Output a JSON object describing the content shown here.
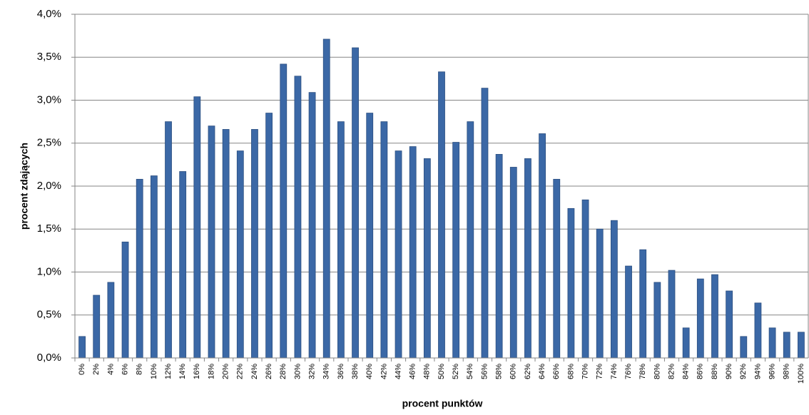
{
  "chart_data": {
    "type": "bar",
    "x_label": "procent punktów",
    "y_label": "procent  zdających",
    "categories": [
      "0%",
      "2%",
      "4%",
      "6%",
      "8%",
      "10%",
      "12%",
      "14%",
      "16%",
      "18%",
      "20%",
      "22%",
      "24%",
      "26%",
      "28%",
      "30%",
      "32%",
      "34%",
      "36%",
      "38%",
      "40%",
      "42%",
      "44%",
      "46%",
      "48%",
      "50%",
      "52%",
      "54%",
      "56%",
      "58%",
      "60%",
      "62%",
      "64%",
      "66%",
      "68%",
      "70%",
      "72%",
      "74%",
      "76%",
      "78%",
      "80%",
      "82%",
      "84%",
      "86%",
      "88%",
      "90%",
      "92%",
      "94%",
      "96%",
      "98%",
      "100%"
    ],
    "values": [
      0.25,
      0.73,
      0.88,
      1.35,
      2.08,
      2.12,
      2.75,
      2.17,
      3.04,
      2.7,
      2.66,
      2.41,
      2.66,
      2.85,
      3.42,
      3.28,
      3.09,
      3.71,
      2.75,
      3.61,
      2.85,
      2.75,
      2.41,
      2.46,
      2.32,
      3.33,
      2.51,
      2.75,
      3.14,
      2.37,
      2.22,
      2.32,
      2.61,
      2.08,
      1.74,
      1.84,
      1.5,
      1.6,
      1.07,
      1.26,
      0.88,
      1.02,
      0.35,
      0.92,
      0.97,
      0.78,
      0.25,
      0.64,
      0.35,
      0.3,
      0.3
    ],
    "color": "#3b68a6",
    "ylim": [
      0,
      4.0
    ],
    "yticks": [
      {
        "value": 0,
        "label": "0,0%"
      },
      {
        "value": 0.5,
        "label": "0,5%"
      },
      {
        "value": 1.0,
        "label": "1,0%"
      },
      {
        "value": 1.5,
        "label": "1,5%"
      },
      {
        "value": 2.0,
        "label": "2,0%"
      },
      {
        "value": 2.5,
        "label": "2,5%"
      },
      {
        "value": 3.0,
        "label": "3,0%"
      },
      {
        "value": 3.5,
        "label": "3,5%"
      },
      {
        "value": 4.0,
        "label": "4,0%"
      }
    ],
    "grid": true
  }
}
